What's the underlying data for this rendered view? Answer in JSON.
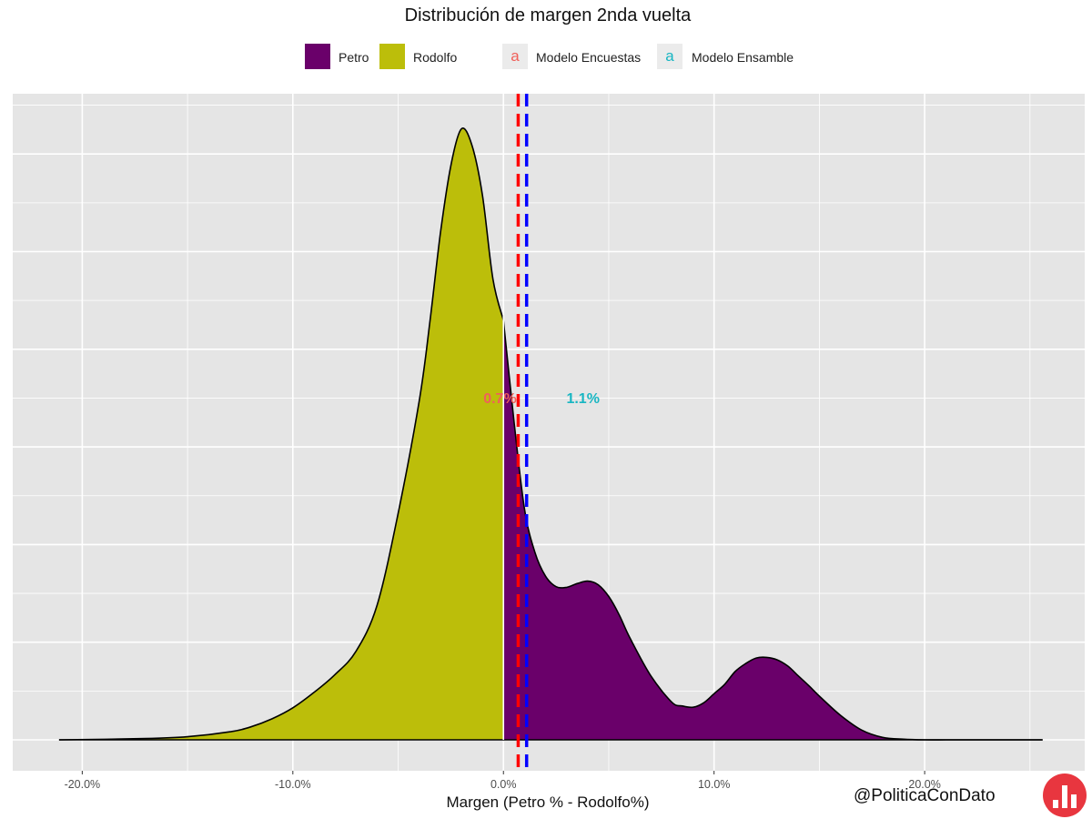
{
  "chart_data": {
    "type": "area",
    "title": "Distribución de margen 2nda vuelta",
    "xlabel": "Margen (Petro % - Rodolfo%)",
    "ylabel": "",
    "xlim": [
      -23.3,
      27.6
    ],
    "x_ticks": [
      -20,
      -10,
      0,
      10,
      20
    ],
    "x_tick_labels": [
      "-20.0%",
      "-10.0%",
      "0.0%",
      "10.0%",
      "20.0%"
    ],
    "y_tick_labels": [],
    "grid": true,
    "legend_position": "top",
    "density": {
      "x": [
        -21.1,
        -17,
        -15,
        -13,
        -12,
        -11,
        -10,
        -9,
        -8,
        -7,
        -6,
        -5,
        -4,
        -3.5,
        -3,
        -2.5,
        -2,
        -1.5,
        -1,
        -0.5,
        0,
        0.5,
        1,
        1.5,
        2,
        2.5,
        3,
        3.5,
        4,
        4.5,
        5,
        5.5,
        6,
        7,
        8,
        8.5,
        9,
        9.5,
        10,
        10.5,
        11,
        11.5,
        12,
        12.5,
        13,
        13.5,
        14,
        14.5,
        15,
        16,
        17,
        18,
        19,
        20,
        21,
        22,
        25.6
      ],
      "y": [
        0,
        0.2,
        0.5,
        1.3,
        2.1,
        3.4,
        5.2,
        7.7,
        10.6,
        14.4,
        21.9,
        36.8,
        55.1,
        67.7,
        82.2,
        93.3,
        99.3,
        96.7,
        88.6,
        74.9,
        68.2,
        51.8,
        37.5,
        30.4,
        26.6,
        24.9,
        24.8,
        25.4,
        25.8,
        25.2,
        23.3,
        20.3,
        16.6,
        10.4,
        6.1,
        5.5,
        5.3,
        6.0,
        7.5,
        9.0,
        11.1,
        12.4,
        13.3,
        13.4,
        13.0,
        12.0,
        10.4,
        8.8,
        7.1,
        4.0,
        1.6,
        0.4,
        0.1,
        0,
        0,
        0,
        0
      ]
    },
    "series": [
      {
        "name": "Petro",
        "range": "x >= 0",
        "color": "#6a006a"
      },
      {
        "name": "Rodolfo",
        "range": "x < 0",
        "color": "#bcbe0a"
      }
    ],
    "vlines": [
      {
        "name": "Modelo Encuestas",
        "x": 0.7,
        "label": "0.7%",
        "line_color": "#ff0000",
        "label_color": "#f0605a"
      },
      {
        "name": "Modelo Ensamble",
        "x": 1.1,
        "label": "1.1%",
        "line_color": "#0000ff",
        "label_color": "#18b6c2"
      }
    ]
  },
  "legend": {
    "items": [
      {
        "label": "Petro",
        "color": "#6a006a"
      },
      {
        "label": "Rodolfo",
        "color": "#bcbe0a"
      },
      {
        "label": "Modelo Encuestas",
        "key": "a",
        "color": "#f0605a"
      },
      {
        "label": "Modelo Ensamble",
        "key": "a",
        "color": "#18b6c2"
      }
    ]
  },
  "credit": "@PoliticaConDato",
  "colors": {
    "panel": "#e5e5e5",
    "grid": "#ffffff",
    "outline": "#000000",
    "logo": "#e8363f"
  }
}
